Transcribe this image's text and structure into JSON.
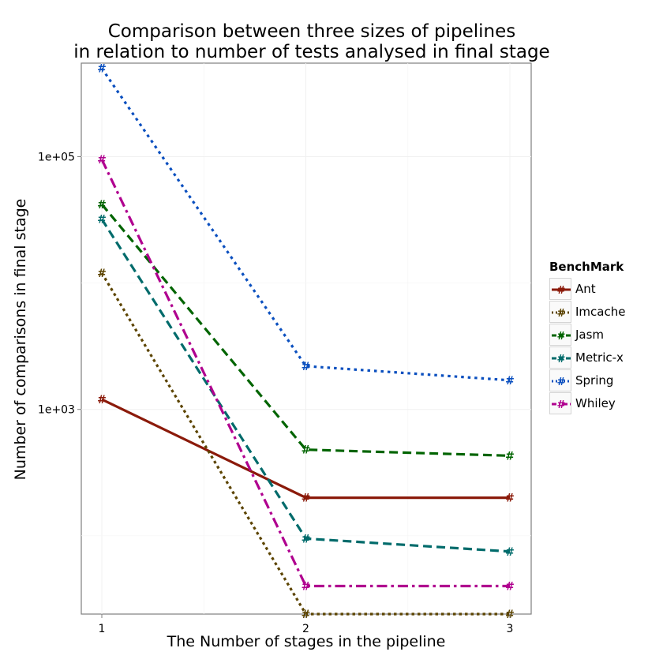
{
  "chart_data": {
    "type": "line",
    "title": "Comparison between three sizes of pipelines\nin relation to number of tests analysed in final stage",
    "title_lines": [
      "Comparison between three sizes of pipelines",
      "in relation to number of tests analysed in final stage"
    ],
    "xlabel": "The Number of stages in the pipeline",
    "ylabel": "Number of comparisons in final stage",
    "x": [
      1,
      2,
      3
    ],
    "x_ticks": [
      "1",
      "2",
      "3"
    ],
    "y_scale": "log10",
    "y_ticks": [
      {
        "value": 1000,
        "label": "1e+03"
      },
      {
        "value": 100000,
        "label": "1e+05"
      }
    ],
    "ylim": [
      24,
      550000
    ],
    "grid": true,
    "marker": "#",
    "legend_title": "BenchMark",
    "legend_position": "right",
    "series": [
      {
        "name": "Ant",
        "color": "#8b1a0a",
        "dash": "solid",
        "values": [
          1200,
          200,
          200
        ]
      },
      {
        "name": "Imcache",
        "color": "#5c4400",
        "dash": "dotted",
        "values": [
          12000,
          24,
          24
        ]
      },
      {
        "name": "Jasm",
        "color": "#006400",
        "dash": "dashed",
        "values": [
          42000,
          480,
          430
        ]
      },
      {
        "name": "Metric-x",
        "color": "#006b6b",
        "dash": "dashed",
        "values": [
          32000,
          95,
          75
        ]
      },
      {
        "name": "Spring",
        "color": "#0a4fbf",
        "dash": "dotted2",
        "values": [
          500000,
          2200,
          1700
        ]
      },
      {
        "name": "Whiley",
        "color": "#b0008f",
        "dash": "dotdash",
        "values": [
          95000,
          40,
          40
        ]
      }
    ]
  }
}
